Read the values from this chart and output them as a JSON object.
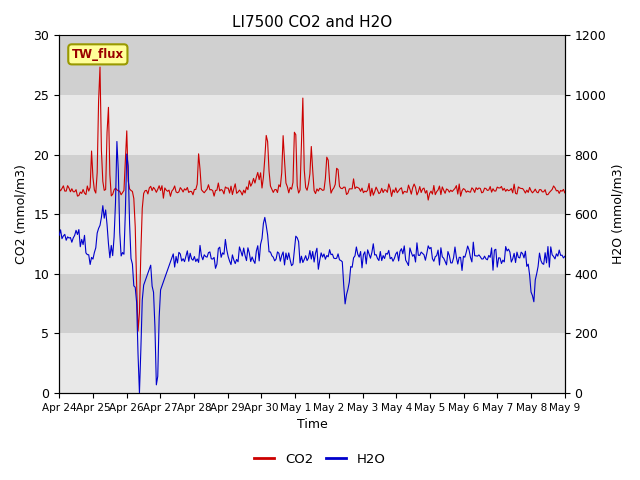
{
  "title": "LI7500 CO2 and H2O",
  "xlabel": "Time",
  "ylabel_left": "CO2 (mmol/m3)",
  "ylabel_right": "H2O (mmol/m3)",
  "ylim_left": [
    0,
    30
  ],
  "ylim_right": [
    0,
    1200
  ],
  "yticks_left": [
    0,
    5,
    10,
    15,
    20,
    25,
    30
  ],
  "yticks_right": [
    0,
    200,
    400,
    600,
    800,
    1000,
    1200
  ],
  "co2_color": "#cc0000",
  "h2o_color": "#0000cc",
  "bg_color_light": "#e8e8e8",
  "bg_color_dark": "#d0d0d0",
  "legend_label": "TW_flux",
  "legend_box_color": "#ffff99",
  "legend_box_edge": "#999900",
  "x_tick_labels": [
    "Apr 24",
    "Apr 25",
    "Apr 26",
    "Apr 27",
    "Apr 28",
    "Apr 29",
    "Apr 30",
    "May 1",
    "May 2",
    "May 3",
    "May 4",
    "May 5",
    "May 6",
    "May 7",
    "May 8",
    "May 9"
  ]
}
